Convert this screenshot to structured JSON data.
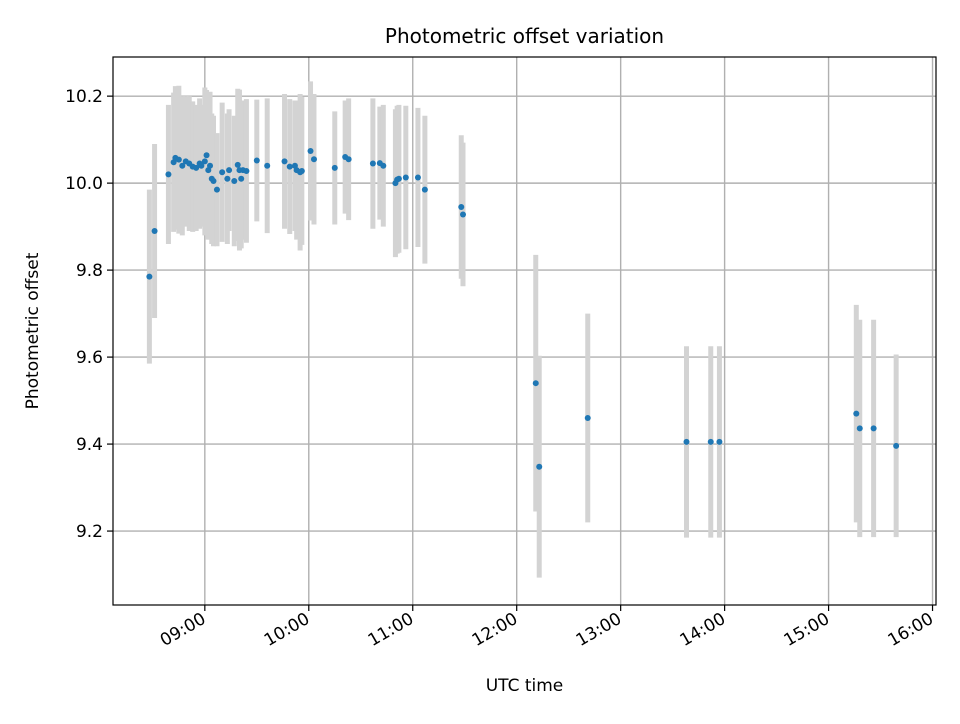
{
  "chart_data": {
    "type": "scatter",
    "title": "Photometric offset variation",
    "xlabel": "UTC time",
    "ylabel": "Photometric offset",
    "xlim": [
      "08:07",
      "16:02"
    ],
    "ylim": [
      9.03,
      10.29
    ],
    "x_ticks": [
      "09:00",
      "10:00",
      "11:00",
      "12:00",
      "13:00",
      "14:00",
      "15:00",
      "16:00"
    ],
    "y_ticks": [
      9.2,
      9.4,
      9.6,
      9.8,
      10.0,
      10.2
    ],
    "grid": true,
    "legend": "none",
    "colors": {
      "points": "#1f77b4",
      "error_bars": "#d3d3d3",
      "grid": "#b0b0b0"
    },
    "series": [
      {
        "x": [
          "08:28",
          "08:31",
          "08:39",
          "08:42",
          "08:43",
          "08:45",
          "08:47",
          "08:49",
          "08:51",
          "08:53",
          "08:55",
          "08:57",
          "08:58",
          "09:00",
          "09:01",
          "09:02",
          "09:03",
          "09:04",
          "09:05",
          "09:07",
          "09:10",
          "09:13",
          "09:14",
          "09:17",
          "09:19",
          "09:20",
          "09:21",
          "09:22",
          "09:24",
          "09:30",
          "09:36",
          "09:46",
          "09:49",
          "09:52",
          "09:53",
          "09:55",
          "09:56",
          "10:01",
          "10:03",
          "10:15",
          "10:21",
          "10:23",
          "10:37",
          "10:41",
          "10:43",
          "10:50",
          "10:51",
          "10:52",
          "10:56",
          "11:03",
          "11:07",
          "11:28",
          "11:29",
          "12:11",
          "12:13",
          "12:41",
          "13:38",
          "13:52",
          "13:57",
          "15:16",
          "15:18",
          "15:26",
          "15:39"
        ],
        "y": [
          9.785,
          9.89,
          10.02,
          10.048,
          10.058,
          10.054,
          10.04,
          10.05,
          10.045,
          10.038,
          10.035,
          10.045,
          10.04,
          10.05,
          10.064,
          10.03,
          10.04,
          10.01,
          10.005,
          9.985,
          10.025,
          10.01,
          10.03,
          10.005,
          10.042,
          10.03,
          10.01,
          10.03,
          10.028,
          10.052,
          10.04,
          10.05,
          10.038,
          10.04,
          10.03,
          10.025,
          10.028,
          10.074,
          10.055,
          10.035,
          10.06,
          10.055,
          10.045,
          10.046,
          10.04,
          10.0,
          10.008,
          10.01,
          10.013,
          10.013,
          9.985,
          9.945,
          9.928,
          9.54,
          9.348,
          9.46,
          9.405,
          9.405,
          9.405,
          9.47,
          9.436,
          9.436,
          9.396
        ],
        "err": [
          0.2,
          0.2,
          0.16,
          0.16,
          0.165,
          0.17,
          0.16,
          0.15,
          0.155,
          0.15,
          0.145,
          0.15,
          0.14,
          0.17,
          0.15,
          0.16,
          0.17,
          0.15,
          0.15,
          0.13,
          0.16,
          0.15,
          0.14,
          0.15,
          0.175,
          0.185,
          0.16,
          0.16,
          0.165,
          0.14,
          0.155,
          0.155,
          0.155,
          0.15,
          0.16,
          0.18,
          0.17,
          0.16,
          0.15,
          0.13,
          0.13,
          0.14,
          0.15,
          0.13,
          0.14,
          0.17,
          0.17,
          0.17,
          0.165,
          0.16,
          0.17,
          0.165,
          0.165,
          0.295,
          0.255,
          0.24,
          0.22,
          0.22,
          0.22,
          0.25,
          0.25,
          0.25,
          0.21
        ]
      }
    ]
  }
}
